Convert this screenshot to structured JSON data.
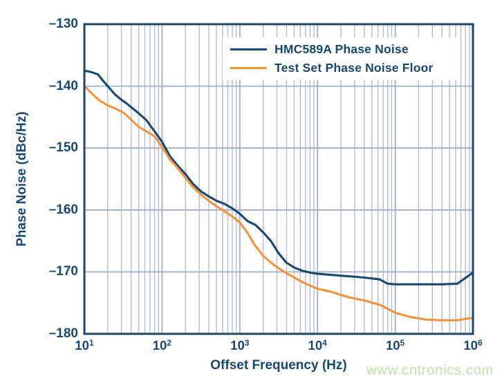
{
  "watermark": {
    "text": "www.cntronics.com",
    "color": "#bee3ac"
  },
  "colors": {
    "navy": "#18486F",
    "orange": "#F0923E",
    "grid_minor": "#b7bad4",
    "grid_major": "#a4aac9",
    "frame": "#18486F",
    "background": "#ffffff"
  },
  "chart_data": {
    "type": "line",
    "title": "",
    "xlabel": "Offset Frequency (Hz)",
    "ylabel": "Phase Noise (dBc/Hz)",
    "x_scale": "log",
    "x_range": [
      10,
      1000000
    ],
    "y_range": [
      -180,
      -130
    ],
    "grid": "log minor vertical gridlines per decade; major gridlines at decades and every 10 dB",
    "legend_position": "top-right inside plot, white box",
    "x_ticks": [
      {
        "base": "10",
        "exp": "1",
        "value": 10
      },
      {
        "base": "10",
        "exp": "2",
        "value": 100
      },
      {
        "base": "10",
        "exp": "3",
        "value": 1000
      },
      {
        "base": "10",
        "exp": "4",
        "value": 10000
      },
      {
        "base": "10",
        "exp": "5",
        "value": 100000
      },
      {
        "base": "10",
        "exp": "6",
        "value": 1000000
      }
    ],
    "y_ticks": [
      {
        "label": "–130",
        "value": -130
      },
      {
        "label": "–140",
        "value": -140
      },
      {
        "label": "–150",
        "value": -150
      },
      {
        "label": "–160",
        "value": -160
      },
      {
        "label": "–170",
        "value": -170
      },
      {
        "label": "–180",
        "value": -180
      }
    ],
    "series": [
      {
        "name": "HMC589A Phase Noise",
        "color": "#18486F",
        "points": [
          [
            10,
            -137.5
          ],
          [
            12,
            -137.7
          ],
          [
            15,
            -138.1
          ],
          [
            17,
            -139.0
          ],
          [
            20,
            -140.0
          ],
          [
            25,
            -141.4
          ],
          [
            30,
            -142.2
          ],
          [
            35,
            -142.8
          ],
          [
            40,
            -143.4
          ],
          [
            50,
            -144.4
          ],
          [
            63,
            -145.5
          ],
          [
            80,
            -147.3
          ],
          [
            100,
            -149.0
          ],
          [
            126,
            -151.3
          ],
          [
            158,
            -152.8
          ],
          [
            200,
            -154.2
          ],
          [
            251,
            -155.8
          ],
          [
            316,
            -157.0
          ],
          [
            398,
            -157.8
          ],
          [
            501,
            -158.5
          ],
          [
            631,
            -159.0
          ],
          [
            794,
            -159.7
          ],
          [
            1000,
            -160.6
          ],
          [
            1259,
            -161.8
          ],
          [
            1585,
            -162.4
          ],
          [
            2000,
            -163.6
          ],
          [
            2512,
            -165.0
          ],
          [
            3162,
            -167.0
          ],
          [
            3981,
            -168.5
          ],
          [
            5012,
            -169.3
          ],
          [
            6310,
            -169.8
          ],
          [
            7943,
            -170.1
          ],
          [
            10000,
            -170.3
          ],
          [
            15849,
            -170.5
          ],
          [
            25119,
            -170.7
          ],
          [
            39811,
            -170.9
          ],
          [
            63096,
            -171.2
          ],
          [
            79433,
            -171.9
          ],
          [
            100000,
            -172.0
          ],
          [
            158489,
            -172.0
          ],
          [
            251189,
            -172.0
          ],
          [
            398107,
            -172.0
          ],
          [
            630957,
            -171.9
          ],
          [
            794328,
            -171.0
          ],
          [
            1000000,
            -170.1
          ]
        ]
      },
      {
        "name": "Test Set Phase Noise Floor",
        "color": "#F0923E",
        "points": [
          [
            10,
            -140.0
          ],
          [
            13,
            -141.4
          ],
          [
            16,
            -142.4
          ],
          [
            20,
            -143.1
          ],
          [
            25,
            -143.6
          ],
          [
            32,
            -144.3
          ],
          [
            40,
            -145.4
          ],
          [
            50,
            -146.6
          ],
          [
            63,
            -147.3
          ],
          [
            80,
            -148.1
          ],
          [
            100,
            -149.8
          ],
          [
            126,
            -151.8
          ],
          [
            158,
            -153.2
          ],
          [
            200,
            -154.8
          ],
          [
            251,
            -156.3
          ],
          [
            316,
            -157.5
          ],
          [
            398,
            -158.5
          ],
          [
            501,
            -159.4
          ],
          [
            631,
            -160.2
          ],
          [
            794,
            -161.0
          ],
          [
            1000,
            -162.0
          ],
          [
            1259,
            -163.7
          ],
          [
            1585,
            -165.8
          ],
          [
            2000,
            -167.4
          ],
          [
            2512,
            -168.5
          ],
          [
            3162,
            -169.4
          ],
          [
            3981,
            -170.2
          ],
          [
            5012,
            -170.9
          ],
          [
            6310,
            -171.6
          ],
          [
            7943,
            -172.2
          ],
          [
            10000,
            -172.7
          ],
          [
            12589,
            -173.0
          ],
          [
            15849,
            -173.3
          ],
          [
            25119,
            -174.1
          ],
          [
            39811,
            -174.6
          ],
          [
            63096,
            -175.3
          ],
          [
            100000,
            -176.6
          ],
          [
            158489,
            -177.3
          ],
          [
            251189,
            -177.7
          ],
          [
            398107,
            -177.8
          ],
          [
            630957,
            -177.8
          ],
          [
            1000000,
            -177.4
          ]
        ]
      }
    ]
  }
}
